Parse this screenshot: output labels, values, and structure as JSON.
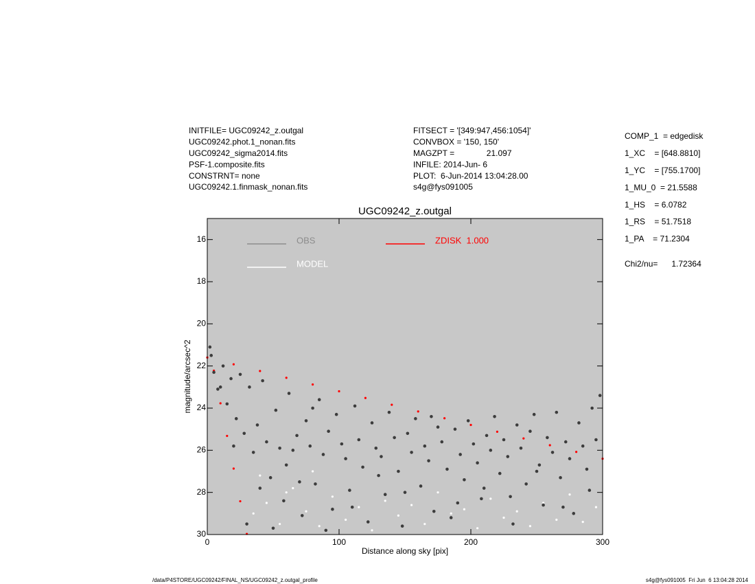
{
  "chart_data": {
    "type": "scatter",
    "title": "UGC09242_z.outgal",
    "xlabel": "Distance along sky [pix]",
    "ylabel": "magnitude/arcsec^2",
    "xlim": [
      0,
      300
    ],
    "ylim": [
      15,
      30
    ],
    "y_inverted": true,
    "xticks": [
      0,
      100,
      200,
      300
    ],
    "yticks": [
      16,
      18,
      20,
      22,
      24,
      26,
      28,
      30
    ],
    "background": "#c8c8c8",
    "header_left": [
      "INITFILE= UGC09242_z.outgal",
      "UGC09242.phot.1_nonan.fits",
      "UGC09242_sigma2014.fits",
      "PSF-1.composite.fits",
      "CONSTRNT= none",
      "UGC09242.1.finmask_nonan.fits"
    ],
    "header_mid": [
      "FITSECT = '[349:947,456:1054]'",
      "CONVBOX = '150, 150'",
      "MAGZPT =              21.097",
      "INFILE: 2014-Jun- 6",
      "PLOT:  6-Jun-2014 13:04:28.00",
      "s4g@fys091005"
    ],
    "header_right": [
      "COMP_1  = edgedisk",
      "1_XC    = [648.8810]",
      "1_YC    = [755.1700]",
      "1_MU_0  = 21.5588",
      "1_HS    = 6.0782",
      "1_RS    = 51.7518",
      "1_PA    = 71.2304"
    ],
    "chi2": "Chi2/nu=      1.72364",
    "footer_left": "/data/P4STORE/UGC09242/FINAL_NS/UGC09242_z.outgal_profile",
    "footer_right": "s4g@fys091005  Fri Jun  6 13:04:28 2014",
    "series": [
      {
        "name": "OBS",
        "color": "#3c3c3c",
        "legend_color": "#8c8c8c",
        "x": [
          5,
          8,
          12,
          15,
          18,
          22,
          25,
          28,
          32,
          35,
          38,
          42,
          45,
          48,
          52,
          55,
          58,
          62,
          65,
          68,
          72,
          75,
          78,
          82,
          85,
          88,
          92,
          95,
          98,
          102,
          105,
          108,
          112,
          115,
          118,
          122,
          125,
          128,
          132,
          135,
          138,
          142,
          145,
          148,
          152,
          155,
          158,
          162,
          165,
          168,
          172,
          175,
          178,
          182,
          185,
          188,
          192,
          195,
          198,
          202,
          205,
          208,
          212,
          215,
          218,
          222,
          225,
          228,
          232,
          235,
          238,
          242,
          245,
          248,
          252,
          255,
          258,
          262,
          265,
          268,
          272,
          275,
          278,
          282,
          285,
          288,
          292,
          295,
          298,
          10,
          20,
          30,
          40,
          50,
          60,
          70,
          80,
          90,
          110,
          130,
          150,
          170,
          190,
          210,
          230,
          250,
          270,
          290,
          2,
          3
        ],
        "values": [
          22.3,
          23.1,
          22.0,
          23.8,
          22.6,
          24.5,
          22.4,
          25.2,
          23.0,
          26.1,
          24.8,
          22.7,
          25.6,
          27.3,
          24.1,
          25.9,
          28.4,
          23.3,
          26.0,
          25.3,
          29.1,
          24.6,
          25.8,
          27.6,
          23.6,
          26.2,
          25.1,
          28.8,
          24.3,
          25.7,
          26.4,
          27.9,
          23.9,
          25.5,
          26.8,
          29.4,
          24.7,
          25.9,
          26.3,
          28.1,
          24.2,
          25.4,
          27.0,
          29.6,
          25.2,
          26.1,
          24.5,
          27.7,
          25.8,
          26.5,
          28.9,
          24.9,
          25.6,
          26.9,
          29.2,
          25.0,
          26.2,
          27.4,
          24.6,
          25.7,
          26.6,
          28.3,
          25.3,
          26.0,
          24.4,
          27.1,
          25.5,
          26.3,
          29.5,
          24.8,
          25.9,
          27.6,
          25.1,
          24.3,
          26.7,
          28.6,
          25.4,
          26.1,
          24.2,
          27.3,
          25.6,
          26.4,
          29.0,
          24.7,
          25.8,
          26.9,
          24.0,
          25.5,
          23.4,
          23.0,
          25.8,
          29.5,
          27.8,
          29.7,
          26.7,
          27.5,
          24.0,
          29.8,
          28.7,
          27.2,
          28.0,
          24.4,
          28.5,
          27.8,
          28.2,
          27.0,
          28.7,
          27.9,
          21.1,
          21.5
        ]
      },
      {
        "name": "MODEL",
        "color": "#ffffff",
        "legend_color": "#ffffff",
        "x": [
          35,
          45,
          55,
          65,
          75,
          85,
          95,
          105,
          115,
          125,
          135,
          145,
          155,
          165,
          175,
          185,
          195,
          205,
          215,
          225,
          235,
          245,
          255,
          265,
          275,
          285,
          295,
          40,
          60,
          80
        ],
        "values": [
          29.0,
          28.5,
          29.5,
          27.8,
          28.9,
          29.6,
          28.2,
          29.3,
          28.7,
          29.8,
          28.4,
          29.1,
          28.6,
          29.5,
          28.0,
          29.0,
          28.8,
          29.7,
          28.3,
          29.2,
          28.9,
          29.6,
          28.5,
          29.3,
          28.1,
          29.4,
          28.7,
          27.2,
          28.0,
          27.0
        ]
      },
      {
        "name": "ZDISK  1.000",
        "color": "#ff0000",
        "legend_color": "#ff0000",
        "x": [
          0,
          20,
          40,
          60,
          80,
          100,
          120,
          140,
          160,
          180,
          200,
          220,
          240,
          260,
          280,
          300,
          5,
          10,
          15,
          20,
          25,
          30
        ],
        "values": [
          21.6,
          21.92,
          22.24,
          22.56,
          22.88,
          23.2,
          23.52,
          23.84,
          24.16,
          24.48,
          24.8,
          25.12,
          25.44,
          25.76,
          26.08,
          26.4,
          22.22,
          23.77,
          25.32,
          26.87,
          28.42,
          29.97
        ]
      }
    ]
  }
}
